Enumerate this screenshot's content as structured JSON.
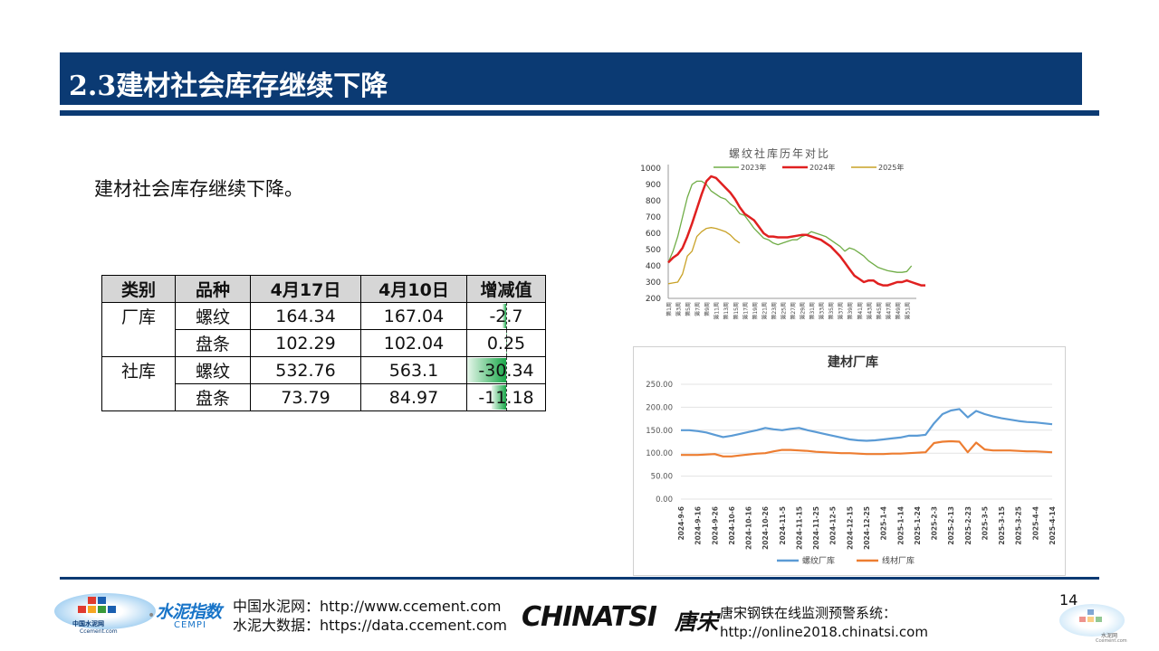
{
  "header": {
    "title": "2.3建材社会库存继续下降"
  },
  "subtitle": "建材社会库存继续下降。",
  "table": {
    "headers": [
      "类别",
      "品种",
      "4月17日",
      "4月10日",
      "增减值"
    ],
    "rows": [
      {
        "category": "厂库",
        "variety": "螺纹",
        "apr17": "164.34",
        "apr10": "167.04",
        "change": "-2.7"
      },
      {
        "category": "",
        "variety": "盘条",
        "apr17": "102.29",
        "apr10": "102.04",
        "change": "0.25"
      },
      {
        "category": "社库",
        "variety": "螺纹",
        "apr17": "532.76",
        "apr10": "563.1",
        "change": "-30.34"
      },
      {
        "category": "",
        "variety": "盘条",
        "apr17": "73.79",
        "apr10": "84.97",
        "change": "-11.18"
      }
    ],
    "change_values": [
      -2.7,
      0.25,
      -30.34,
      -11.18
    ],
    "bar_color": "#1aa84a"
  },
  "chart_data": [
    {
      "type": "line",
      "title": "螺纹社库历年对比",
      "ylim": [
        200,
        1000
      ],
      "yticks": [
        "200",
        "300",
        "400",
        "500",
        "600",
        "700",
        "800",
        "900",
        "1000"
      ],
      "xticks": [
        "第1周",
        "第3周",
        "第5周",
        "第7周",
        "第9周",
        "第11周",
        "第13周",
        "第15周",
        "第17周",
        "第19周",
        "第21周",
        "第23周",
        "第25周",
        "第27周",
        "第29周",
        "第31周",
        "第33周",
        "第35周",
        "第37周",
        "第39周",
        "第41周",
        "第43周",
        "第45周",
        "第47周",
        "第49周",
        "第51周"
      ],
      "legend_position": "top",
      "series": [
        {
          "name": "2023年",
          "color": "#70ad47",
          "values": [
            420,
            490,
            580,
            700,
            820,
            900,
            920,
            920,
            900,
            860,
            840,
            820,
            810,
            780,
            760,
            720,
            710,
            670,
            630,
            600,
            570,
            560,
            540,
            530,
            540,
            550,
            560,
            560,
            580,
            590,
            610,
            600,
            590,
            580,
            560,
            540,
            520,
            490,
            510,
            500,
            480,
            460,
            430,
            410,
            390,
            380,
            370,
            365,
            360,
            360,
            365,
            400
          ]
        },
        {
          "name": "2024年",
          "color": "#e02020",
          "values": [
            420,
            450,
            470,
            510,
            580,
            660,
            750,
            840,
            920,
            950,
            940,
            910,
            880,
            850,
            810,
            760,
            720,
            700,
            680,
            640,
            600,
            580,
            580,
            575,
            575,
            575,
            580,
            585,
            590,
            590,
            580,
            570,
            560,
            540,
            520,
            490,
            460,
            420,
            380,
            340,
            320,
            300,
            310,
            310,
            290,
            280,
            280,
            290,
            300,
            300,
            310,
            300,
            290,
            280,
            280
          ]
        },
        {
          "name": "2025年",
          "color": "#c9a227",
          "values": [
            290,
            295,
            300,
            350,
            460,
            490,
            580,
            610,
            630,
            635,
            630,
            620,
            610,
            590,
            560,
            540
          ]
        }
      ]
    },
    {
      "type": "line",
      "title": "建材厂库",
      "ylim": [
        0,
        250
      ],
      "yticks": [
        "0.00",
        "50.00",
        "100.00",
        "150.00",
        "200.00",
        "250.00"
      ],
      "xticks": [
        "2024-9-6",
        "2024-9-16",
        "2024-9-26",
        "2024-10-6",
        "2024-10-16",
        "2024-10-26",
        "2024-11-5",
        "2024-11-15",
        "2024-11-25",
        "2024-12-5",
        "2024-12-15",
        "2024-12-25",
        "2025-1-4",
        "2025-1-14",
        "2025-1-24",
        "2025-2-3",
        "2025-2-13",
        "2025-2-23",
        "2025-3-5",
        "2025-3-15",
        "2025-3-25",
        "2025-4-4",
        "2025-4-14"
      ],
      "legend_position": "bottom",
      "series": [
        {
          "name": "螺纹厂库",
          "color": "#5b9bd5",
          "values": [
            150,
            150,
            148,
            145,
            140,
            135,
            138,
            142,
            146,
            150,
            155,
            152,
            150,
            153,
            155,
            150,
            146,
            142,
            138,
            134,
            130,
            128,
            127,
            128,
            130,
            132,
            134,
            138,
            138,
            140,
            165,
            185,
            193,
            196,
            178,
            192,
            185,
            180,
            176,
            173,
            170,
            168,
            167,
            165,
            163
          ]
        },
        {
          "name": "线材厂库",
          "color": "#ed7d31",
          "values": [
            96,
            96,
            96,
            97,
            98,
            93,
            93,
            95,
            97,
            99,
            100,
            104,
            107,
            107,
            106,
            105,
            103,
            102,
            101,
            100,
            100,
            99,
            98,
            98,
            98,
            99,
            99,
            100,
            101,
            102,
            122,
            125,
            126,
            125,
            102,
            123,
            108,
            106,
            106,
            106,
            105,
            104,
            104,
            103,
            102
          ]
        }
      ]
    }
  ],
  "footer": {
    "page_number": "14",
    "link_line1": "中国水泥网：http://www.ccement.com",
    "link_line2": "水泥大数据：https://data.ccement.com",
    "chinatsi": "CHINATSI",
    "tangsong": "唐宋",
    "warn_line1": "唐宋钢铁在线监测预警系统：",
    "warn_line2": "http://online2018.chinatsi.com",
    "logo_ccement_cn": "中国水泥网",
    "logo_ccement_en": "Ccement.com",
    "cempi_main": "水泥指数",
    "cempi_sub": "CEMPI",
    "logo_right_cn": "水泥网",
    "logo_right_en": "Ccement.com"
  }
}
